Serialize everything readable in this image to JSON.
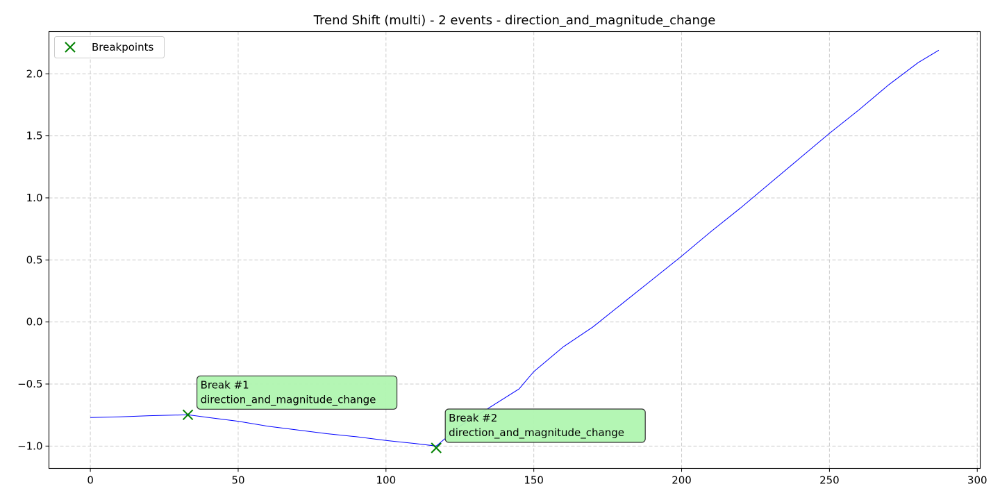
{
  "chart_data": {
    "type": "line",
    "title": "Trend Shift (multi) - 2 events - direction_and_magnitude_change",
    "xlabel": "",
    "ylabel": "",
    "xlim": [
      -14,
      301
    ],
    "ylim": [
      -1.18,
      2.34
    ],
    "xticks": [
      0,
      50,
      100,
      150,
      200,
      250,
      300
    ],
    "xtick_labels": [
      "0",
      "50",
      "100",
      "150",
      "200",
      "250",
      "300"
    ],
    "yticks": [
      -1.0,
      -0.5,
      0.0,
      0.5,
      1.0,
      1.5,
      2.0
    ],
    "ytick_labels": [
      "−1.0",
      "−0.5",
      "0.0",
      "0.5",
      "1.0",
      "1.5",
      "2.0"
    ],
    "grid": true,
    "legend": {
      "position": "top-left",
      "entries": [
        "Breakpoints"
      ]
    },
    "colors": {
      "series": "#0000ff",
      "marker": "#008000",
      "annotation_fill": "#b0f5b0",
      "grid": "#cccccc"
    },
    "series": [
      {
        "x": [
          0,
          10,
          20,
          33,
          40,
          50,
          60,
          70,
          80,
          90,
          100,
          110,
          117,
          125,
          135,
          145,
          150,
          160,
          170,
          180,
          190,
          200,
          210,
          220,
          230,
          240,
          250,
          260,
          270,
          280,
          287
        ],
        "y": [
          -0.77,
          -0.765,
          -0.755,
          -0.748,
          -0.77,
          -0.8,
          -0.84,
          -0.87,
          -0.9,
          -0.925,
          -0.955,
          -0.98,
          -1.0,
          -0.84,
          -0.69,
          -0.54,
          -0.4,
          -0.2,
          -0.04,
          0.15,
          0.34,
          0.53,
          0.73,
          0.92,
          1.12,
          1.32,
          1.52,
          1.71,
          1.91,
          2.09,
          2.19
        ]
      }
    ],
    "breakpoints": [
      {
        "x": 33,
        "y": -0.748,
        "label_line1": "Break #1",
        "label_line2": "direction_and_magnitude_change"
      },
      {
        "x": 117,
        "y": -1.015,
        "label_line1": "Break #2",
        "label_line2": "direction_and_magnitude_change"
      }
    ]
  }
}
